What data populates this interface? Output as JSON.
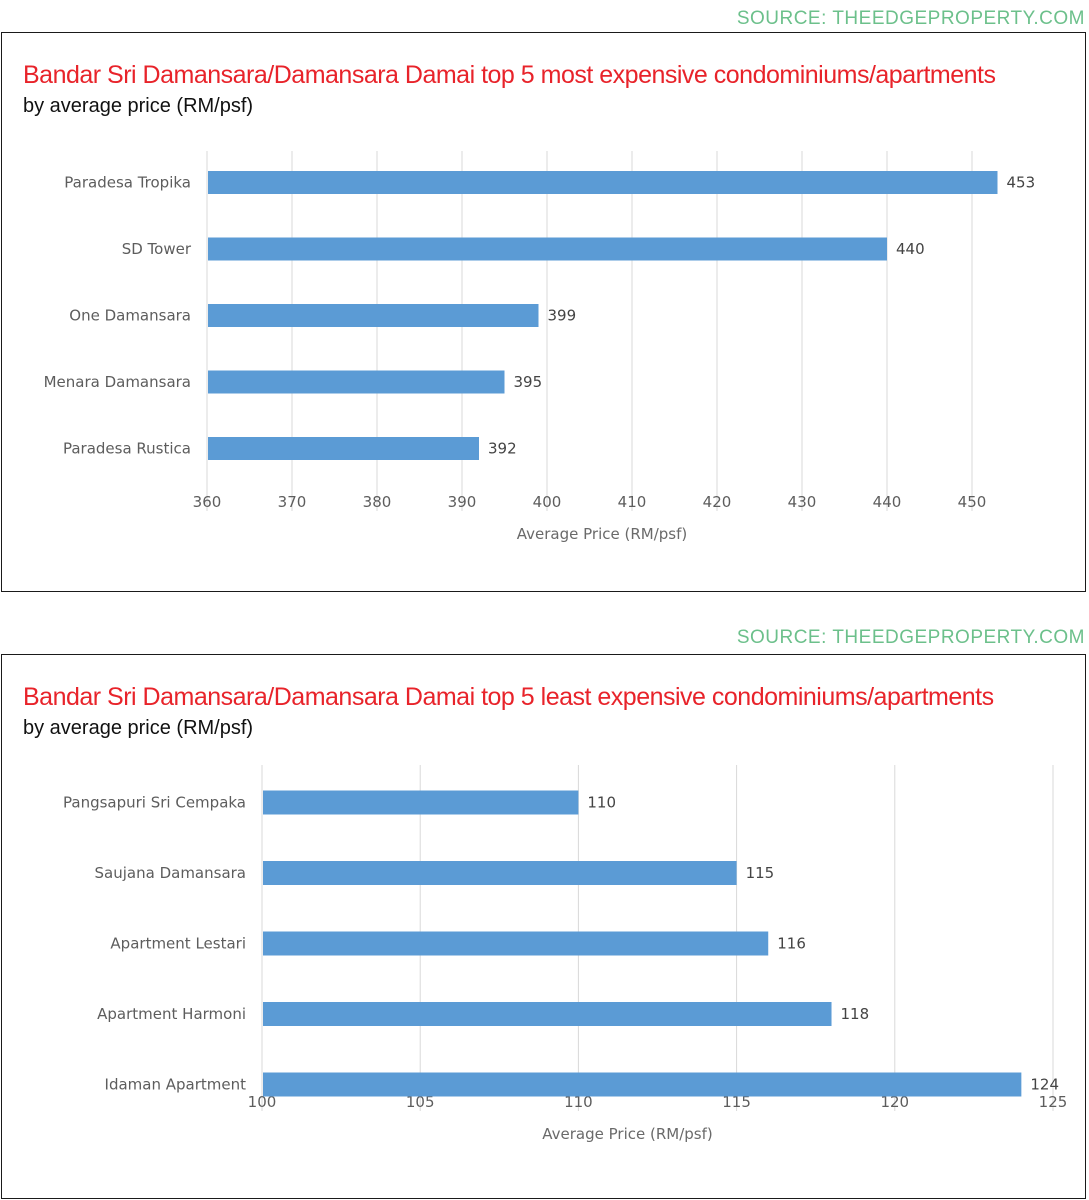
{
  "source_label": "SOURCE: THEEDGEPROPERTY.COM",
  "chart_data": [
    {
      "type": "bar",
      "orientation": "horizontal",
      "title": "Bandar Sri Damansara/Damansara Damai top 5 most expensive condominiums/apartments",
      "subtitle": "by average price (RM/psf)",
      "categories": [
        "Paradesa Tropika",
        "SD Tower",
        "One Damansara",
        "Menara Damansara",
        "Paradesa Rustica"
      ],
      "values": [
        453,
        440,
        399,
        395,
        392
      ],
      "xlabel": "Average Price (RM/psf)",
      "xlim": [
        360,
        460
      ],
      "xticks": [
        360,
        370,
        380,
        390,
        400,
        410,
        420,
        430,
        440,
        450
      ],
      "grid": true,
      "bar_color": "#5b9bd5"
    },
    {
      "type": "bar",
      "orientation": "horizontal",
      "title": "Bandar Sri Damansara/Damansara Damai top 5 least expensive condominiums/apartments",
      "subtitle": "by average price (RM/psf)",
      "categories": [
        "Pangsapuri Sri Cempaka",
        "Saujana Damansara",
        "Apartment Lestari",
        "Apartment Harmoni",
        "Idaman Apartment"
      ],
      "values": [
        110,
        115,
        116,
        118,
        124
      ],
      "xlabel": "Average Price (RM/psf)",
      "xlim": [
        100,
        125
      ],
      "xticks": [
        100,
        105,
        110,
        115,
        120,
        125
      ],
      "grid": true,
      "bar_color": "#5b9bd5"
    }
  ],
  "colors": {
    "title": "#e8232a",
    "source": "#6cc08b",
    "bar": "#5b9bd5",
    "grid": "#d9d9d9"
  }
}
